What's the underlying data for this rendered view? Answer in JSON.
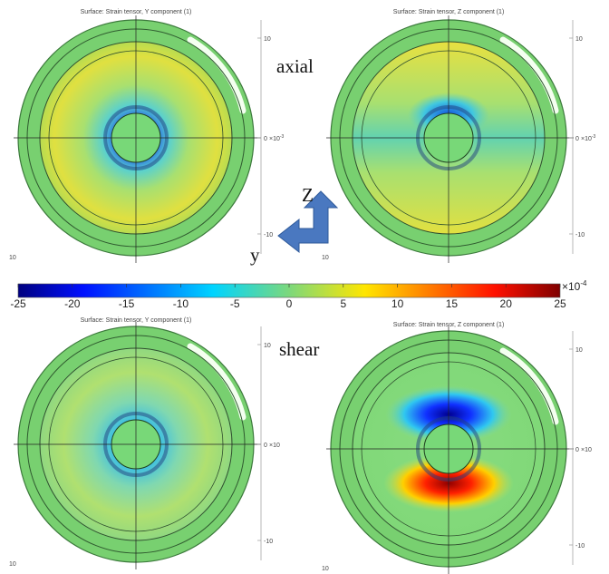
{
  "panels": [
    {
      "title": "Surface: Strain tensor, Y component (1)",
      "ticks": [
        "10",
        "0",
        "-10"
      ],
      "multiplier": "×10",
      "exponent": "-3",
      "corner_label": "10"
    },
    {
      "title": "Surface: Strain tensor, Z component (1)",
      "ticks": [
        "10",
        "0",
        "-10"
      ],
      "multiplier": "×10",
      "exponent": "-3",
      "corner_label": "10"
    },
    {
      "title": "Surface: Strain tensor, Y component (1)",
      "ticks": [
        "10",
        "0",
        "-10"
      ],
      "multiplier": "×10",
      "corner_label": "10"
    },
    {
      "title": "Surface: Strain tensor, Z component (1)",
      "ticks": [
        "10",
        "0",
        "-10"
      ],
      "multiplier": "×10",
      "corner_label": "10"
    }
  ],
  "labels": {
    "axial": "axial",
    "shear": "shear",
    "z_axis": "Z",
    "y_axis": "y"
  },
  "colorbar": {
    "range": [
      -25,
      25
    ],
    "ticks": [
      -25,
      -20,
      -15,
      -10,
      -5,
      0,
      5,
      10,
      15,
      20,
      25
    ],
    "multiplier": "×10",
    "exponent": "-4"
  }
}
